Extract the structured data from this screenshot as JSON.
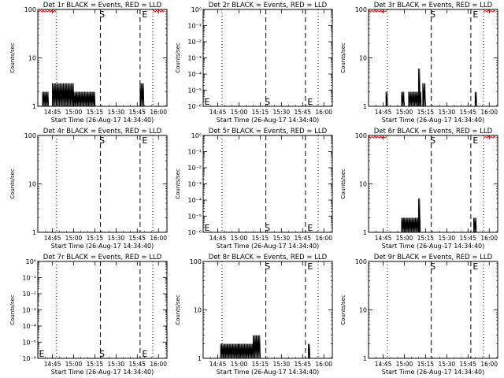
{
  "figure": {
    "start_time_label": "Start Time (26-Aug-17 14:34:40)",
    "marker_s": "S",
    "marker_e": "E",
    "x_ticks": [
      "14:45",
      "15:00",
      "15:15",
      "15:30",
      "15:45",
      "16:00"
    ],
    "colors": {
      "events": "#000000",
      "lld": "#ff0000",
      "frame": "#000000"
    }
  },
  "chart_data": [
    {
      "type": "line",
      "title": "Det 1r BLACK = Events, RED = LLD",
      "ylabel": "Counts/sec",
      "yscale": "log",
      "ylim": [
        1,
        100
      ],
      "yticks": [
        {
          "v": 1,
          "t": "1"
        },
        {
          "v": 10,
          "t": "10"
        },
        {
          "v": 100,
          "t": "100"
        }
      ],
      "xlabel": "Start Time (26-Aug-17 14:34:40)",
      "x_ticks": [
        "14:45",
        "15:00",
        "15:15",
        "15:30",
        "15:45",
        "16:00"
      ],
      "s_time": "15:19",
      "e_time": "15:47",
      "dotted_lines": [
        "14:48",
        "15:56"
      ],
      "lld_level": 100,
      "lld_ranges": [
        [
          "14:35",
          "14:48"
        ],
        [
          "15:56",
          "16:05"
        ]
      ],
      "events": [
        {
          "range": [
            "14:38",
            "14:42"
          ],
          "level": 2
        },
        {
          "range": [
            "14:45",
            "15:00"
          ],
          "level": 3
        },
        {
          "range": [
            "15:00",
            "15:15"
          ],
          "level": 2
        },
        {
          "range": [
            "15:47",
            "15:50"
          ],
          "level": 3
        }
      ]
    },
    {
      "type": "line",
      "title": "Det 2r BLACK = Events, RED = LLD",
      "ylabel": "Counts/sec",
      "yscale": "log",
      "ylim": [
        1e-06,
        1
      ],
      "yticks": [
        {
          "v": 1e-06,
          "t": "10⁻⁶"
        },
        {
          "v": 1e-05,
          "t": "10⁻⁵"
        },
        {
          "v": 0.0001,
          "t": "10⁻⁴"
        },
        {
          "v": 0.001,
          "t": "10⁻³"
        },
        {
          "v": 0.01,
          "t": "10⁻²"
        },
        {
          "v": 0.1,
          "t": "10⁻¹"
        },
        {
          "v": 1,
          "t": "10⁰"
        }
      ],
      "xlabel": "Start Time (26-Aug-17 14:34:40)",
      "x_ticks": [
        "14:45",
        "15:00",
        "15:15",
        "15:30",
        "15:45",
        "16:00"
      ],
      "s_time": "15:19",
      "e_time": "15:47",
      "dotted_lines": [
        "14:48",
        "15:56"
      ],
      "lld_level": null,
      "lld_ranges": [],
      "events": [],
      "bottom_markers": true
    },
    {
      "type": "line",
      "title": "Det 3r BLACK = Events, RED = LLD",
      "ylabel": "Counts/sec",
      "yscale": "log",
      "ylim": [
        1,
        100
      ],
      "yticks": [
        {
          "v": 1,
          "t": "1"
        },
        {
          "v": 10,
          "t": "10"
        },
        {
          "v": 100,
          "t": "100"
        }
      ],
      "xlabel": "Start Time (26-Aug-17 14:34:40)",
      "x_ticks": [
        "14:45",
        "15:00",
        "15:15",
        "15:30",
        "15:45",
        "16:00"
      ],
      "s_time": "15:19",
      "e_time": "15:47",
      "dotted_lines": [
        "14:48",
        "15:56"
      ],
      "lld_level": 100,
      "lld_ranges": [
        [
          "14:35",
          "14:48"
        ],
        [
          "15:56",
          "16:05"
        ]
      ],
      "events": [
        {
          "range": [
            "14:47",
            "14:48"
          ],
          "level": 2
        },
        {
          "range": [
            "14:58",
            "15:00"
          ],
          "level": 2
        },
        {
          "range": [
            "15:03",
            "15:12"
          ],
          "level": 2
        },
        {
          "range": [
            "15:10",
            "15:11"
          ],
          "level": 6
        },
        {
          "range": [
            "15:13",
            "15:15"
          ],
          "level": 3
        },
        {
          "range": [
            "15:50",
            "15:51"
          ],
          "level": 2
        }
      ]
    },
    {
      "type": "line",
      "title": "Det 4r BLACK = Events, RED = LLD",
      "ylabel": "Counts/sec",
      "yscale": "log",
      "ylim": [
        1,
        100
      ],
      "yticks": [
        {
          "v": 1,
          "t": "1"
        },
        {
          "v": 10,
          "t": "10"
        },
        {
          "v": 100,
          "t": "100"
        }
      ],
      "xlabel": "Start Time (26-Aug-17 14:34:40)",
      "x_ticks": [
        "14:45",
        "15:00",
        "15:15",
        "15:30",
        "15:45",
        "16:00"
      ],
      "s_time": "15:19",
      "e_time": "15:47",
      "dotted_lines": [
        "14:48",
        "15:56"
      ],
      "lld_level": null,
      "lld_ranges": [],
      "events": []
    },
    {
      "type": "line",
      "title": "Det 5r BLACK = Events, RED = LLD",
      "ylabel": "Counts/sec",
      "yscale": "log",
      "ylim": [
        1e-06,
        1
      ],
      "yticks": [
        {
          "v": 1e-06,
          "t": "10⁻⁶"
        },
        {
          "v": 1e-05,
          "t": "10⁻⁵"
        },
        {
          "v": 0.0001,
          "t": "10⁻⁴"
        },
        {
          "v": 0.001,
          "t": "10⁻³"
        },
        {
          "v": 0.01,
          "t": "10⁻²"
        },
        {
          "v": 0.1,
          "t": "10⁻¹"
        },
        {
          "v": 1,
          "t": "10⁰"
        }
      ],
      "xlabel": "Start Time (26-Aug-17 14:34:40)",
      "x_ticks": [
        "14:45",
        "15:00",
        "15:15",
        "15:30",
        "15:45",
        "16:00"
      ],
      "s_time": "15:19",
      "e_time": "15:47",
      "dotted_lines": [
        "14:48",
        "15:56"
      ],
      "lld_level": null,
      "lld_ranges": [],
      "events": [],
      "bottom_markers": true
    },
    {
      "type": "line",
      "title": "Det 6r BLACK = Events, RED = LLD",
      "ylabel": "Counts/sec",
      "yscale": "log",
      "ylim": [
        1,
        100
      ],
      "yticks": [
        {
          "v": 1,
          "t": "1"
        },
        {
          "v": 10,
          "t": "10"
        },
        {
          "v": 100,
          "t": "100"
        }
      ],
      "xlabel": "Start Time (26-Aug-17 14:34:40)",
      "x_ticks": [
        "14:45",
        "15:00",
        "15:15",
        "15:30",
        "15:45",
        "16:00"
      ],
      "s_time": "15:19",
      "e_time": "15:47",
      "dotted_lines": [
        "14:48",
        "15:56"
      ],
      "lld_level": 100,
      "lld_ranges": [
        [
          "14:35",
          "14:48"
        ],
        [
          "15:56",
          "16:05"
        ]
      ],
      "events": [
        {
          "range": [
            "14:58",
            "15:00"
          ],
          "level": 2
        },
        {
          "range": [
            "15:00",
            "15:11"
          ],
          "level": 2
        },
        {
          "range": [
            "15:10",
            "15:11"
          ],
          "level": 5
        },
        {
          "range": [
            "15:49",
            "15:51"
          ],
          "level": 2
        }
      ]
    },
    {
      "type": "line",
      "title": "Det 7r BLACK = Events, RED = LLD",
      "ylabel": "Counts/sec",
      "yscale": "log",
      "ylim": [
        1e-06,
        1
      ],
      "yticks": [
        {
          "v": 1e-06,
          "t": "10⁻⁶"
        },
        {
          "v": 1e-05,
          "t": "10⁻⁵"
        },
        {
          "v": 0.0001,
          "t": "10⁻⁴"
        },
        {
          "v": 0.001,
          "t": "10⁻³"
        },
        {
          "v": 0.01,
          "t": "10⁻²"
        },
        {
          "v": 0.1,
          "t": "10⁻¹"
        },
        {
          "v": 1,
          "t": "10⁰"
        }
      ],
      "xlabel": "Start Time (26-Aug-17 14:34:40)",
      "x_ticks": [
        "14:45",
        "15:00",
        "15:15",
        "15:30",
        "15:45",
        "16:00"
      ],
      "s_time": "15:19",
      "e_time": "15:47",
      "dotted_lines": [
        "14:48",
        "15:56"
      ],
      "lld_level": null,
      "lld_ranges": [],
      "events": [],
      "bottom_markers": true
    },
    {
      "type": "line",
      "title": "Det 8r BLACK = Events, RED = LLD",
      "ylabel": "Counts/sec",
      "yscale": "log",
      "ylim": [
        1,
        100
      ],
      "yticks": [
        {
          "v": 1,
          "t": "1"
        },
        {
          "v": 10,
          "t": "10"
        },
        {
          "v": 100,
          "t": "100"
        }
      ],
      "xlabel": "Start Time (26-Aug-17 14:34:40)",
      "x_ticks": [
        "14:45",
        "15:00",
        "15:15",
        "15:30",
        "15:45",
        "16:00"
      ],
      "s_time": "15:19",
      "e_time": "15:47",
      "dotted_lines": [
        "14:48",
        "15:56"
      ],
      "lld_level": null,
      "lld_ranges": [],
      "events": [
        {
          "range": [
            "14:47",
            "15:00"
          ],
          "level": 2
        },
        {
          "range": [
            "15:00",
            "15:10"
          ],
          "level": 2
        },
        {
          "range": [
            "15:10",
            "15:15"
          ],
          "level": 3
        },
        {
          "range": [
            "15:49",
            "15:50"
          ],
          "level": 2
        }
      ]
    },
    {
      "type": "line",
      "title": "Det 9r BLACK = Events, RED = LLD",
      "ylabel": "Counts/sec",
      "yscale": "log",
      "ylim": [
        1,
        100
      ],
      "yticks": [
        {
          "v": 1,
          "t": "1"
        },
        {
          "v": 10,
          "t": "10"
        },
        {
          "v": 100,
          "t": "100"
        }
      ],
      "xlabel": "Start Time (26-Aug-17 14:34:40)",
      "x_ticks": [
        "14:45",
        "15:00",
        "15:15",
        "15:30",
        "15:45",
        "16:00"
      ],
      "s_time": "15:19",
      "e_time": "15:47",
      "dotted_lines": [
        "14:48",
        "15:56"
      ],
      "lld_level": null,
      "lld_ranges": [],
      "events": []
    }
  ]
}
